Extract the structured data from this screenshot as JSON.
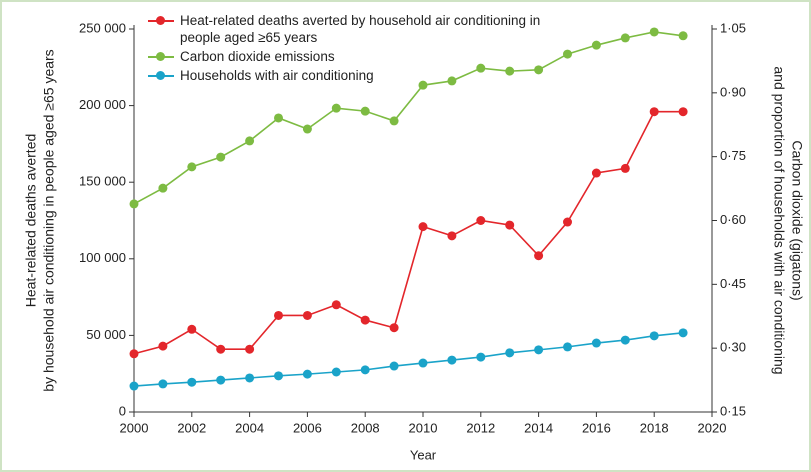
{
  "chart_data": {
    "type": "line",
    "x_label": "Year",
    "y_label": [
      "Heat-related deaths averted",
      "by household air conditioning in people aged ≥65 years"
    ],
    "y2_label": [
      "Carbon dioxide (gigatons)",
      "and proportion of households with air conditioning"
    ],
    "x": [
      2000,
      2001,
      2002,
      2003,
      2004,
      2005,
      2006,
      2007,
      2008,
      2009,
      2010,
      2011,
      2012,
      2013,
      2014,
      2015,
      2016,
      2017,
      2018,
      2019
    ],
    "xlim": [
      2000,
      2020
    ],
    "xticks": [
      2000,
      2002,
      2004,
      2006,
      2008,
      2010,
      2012,
      2014,
      2016,
      2018,
      2020
    ],
    "ylim": [
      0,
      250000
    ],
    "yticks": [
      0,
      {
        "value": 50000,
        "label": "50 000"
      },
      {
        "value": 100000,
        "label": "100 000"
      },
      {
        "value": 150000,
        "label": "150 000"
      },
      {
        "value": 200000,
        "label": "200 000"
      },
      {
        "value": 250000,
        "label": "250 000"
      }
    ],
    "y2lim": [
      0.15,
      1.05
    ],
    "y2ticks": [
      {
        "value": 0.15,
        "label": "0·15"
      },
      {
        "value": 0.3,
        "label": "0·30"
      },
      {
        "value": 0.45,
        "label": "0·45"
      },
      {
        "value": 0.6,
        "label": "0·60"
      },
      {
        "value": 0.75,
        "label": "0·75"
      },
      {
        "value": 0.9,
        "label": "0·90"
      },
      {
        "value": 1.05,
        "label": "1·05"
      }
    ],
    "series": [
      {
        "name": "Heat-related deaths averted by household air conditioning in people aged ≥65 years",
        "color": "#e3262b",
        "values": [
          38000,
          43000,
          54000,
          41000,
          41000,
          63000,
          63000,
          70000,
          60000,
          55000,
          121000,
          115000,
          125000,
          122000,
          102000,
          124000,
          156000,
          159000,
          196000,
          196000
        ]
      },
      {
        "name": "Carbon dioxide emissions",
        "color": "#7dbb42",
        "axis": "y2",
        "values": [
          0.639,
          0.676,
          0.726,
          0.749,
          0.787,
          0.841,
          0.815,
          0.864,
          0.857,
          0.834,
          0.918,
          0.928,
          0.958,
          0.951,
          0.954,
          0.991,
          1.012,
          1.029,
          1.043,
          1.034
        ]
      },
      {
        "name": "Households with air conditioning",
        "color": "#1aa3c9",
        "axis": "y2",
        "values": [
          0.211,
          0.216,
          0.22,
          0.225,
          0.23,
          0.235,
          0.239,
          0.244,
          0.249,
          0.258,
          0.265,
          0.272,
          0.279,
          0.289,
          0.296,
          0.303,
          0.312,
          0.319,
          0.329,
          0.336
        ]
      }
    ]
  }
}
